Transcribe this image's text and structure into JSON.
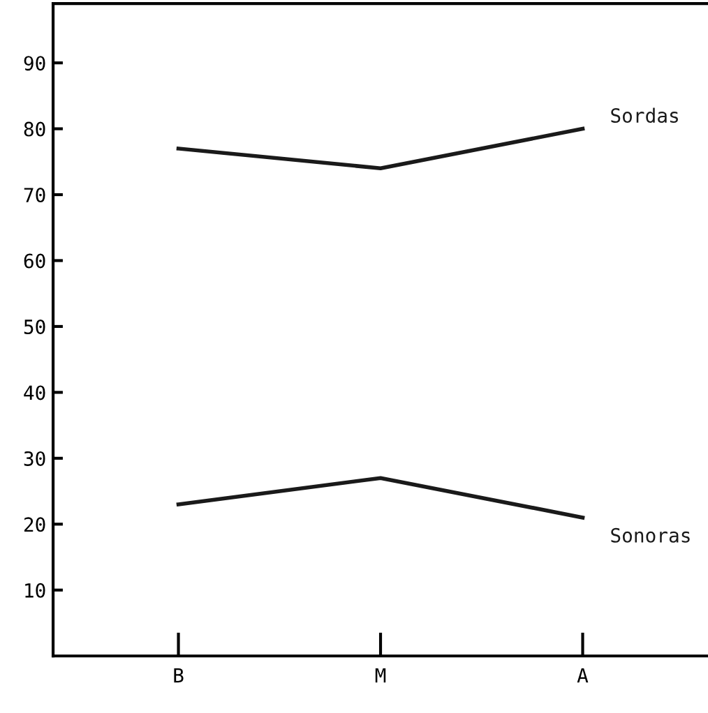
{
  "chart_data": {
    "type": "line",
    "categories": [
      "B",
      "M",
      "A"
    ],
    "series": [
      {
        "name": "Sordas",
        "color": "#1a1a1a",
        "values": [
          77,
          74,
          80
        ]
      },
      {
        "name": "Sonoras",
        "color": "#1a1a1a",
        "values": [
          23,
          27,
          21
        ]
      }
    ],
    "ylim": [
      0,
      99
    ],
    "yticks": [
      10,
      20,
      30,
      40,
      50,
      60,
      70,
      80,
      90
    ],
    "grid": false,
    "legend": false,
    "marker": "none",
    "line_style": "solid"
  }
}
